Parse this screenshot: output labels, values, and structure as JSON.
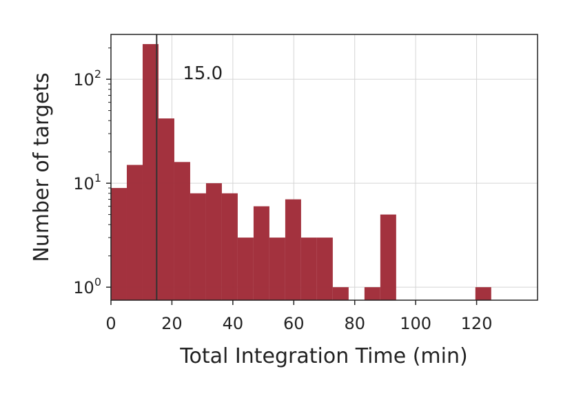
{
  "chart_data": {
    "type": "bar",
    "xlabel": "Total Integration Time (min)",
    "ylabel": "Number of targets",
    "x_ticks": [
      0,
      20,
      40,
      60,
      80,
      100,
      120
    ],
    "y_ticks": [
      {
        "value": 1,
        "base": "10",
        "exp": "0"
      },
      {
        "value": 10,
        "base": "10",
        "exp": "1"
      },
      {
        "value": 100,
        "base": "10",
        "exp": "2"
      }
    ],
    "xlim": [
      0,
      140
    ],
    "ylim": [
      0.75,
      270
    ],
    "y_scale": "log",
    "grid": true,
    "bar_color": "#a02b38",
    "bins": [
      {
        "x0": 0.0,
        "x1": 5.2,
        "count": 9
      },
      {
        "x0": 5.2,
        "x1": 10.4,
        "count": 15
      },
      {
        "x0": 10.4,
        "x1": 15.6,
        "count": 218
      },
      {
        "x0": 15.6,
        "x1": 20.8,
        "count": 42
      },
      {
        "x0": 20.8,
        "x1": 26.0,
        "count": 16
      },
      {
        "x0": 26.0,
        "x1": 31.2,
        "count": 8
      },
      {
        "x0": 31.2,
        "x1": 36.4,
        "count": 10
      },
      {
        "x0": 36.4,
        "x1": 41.6,
        "count": 8
      },
      {
        "x0": 41.6,
        "x1": 46.8,
        "count": 3
      },
      {
        "x0": 46.8,
        "x1": 52.0,
        "count": 6
      },
      {
        "x0": 52.0,
        "x1": 57.2,
        "count": 3
      },
      {
        "x0": 57.2,
        "x1": 62.4,
        "count": 7
      },
      {
        "x0": 62.4,
        "x1": 67.6,
        "count": 3
      },
      {
        "x0": 67.6,
        "x1": 72.8,
        "count": 3
      },
      {
        "x0": 72.8,
        "x1": 78.0,
        "count": 1
      },
      {
        "x0": 83.2,
        "x1": 88.4,
        "count": 1
      },
      {
        "x0": 88.4,
        "x1": 93.6,
        "count": 5
      },
      {
        "x0": 119.6,
        "x1": 124.8,
        "count": 1
      }
    ],
    "marker_line": {
      "x": 15.0,
      "label": "15.0"
    }
  }
}
